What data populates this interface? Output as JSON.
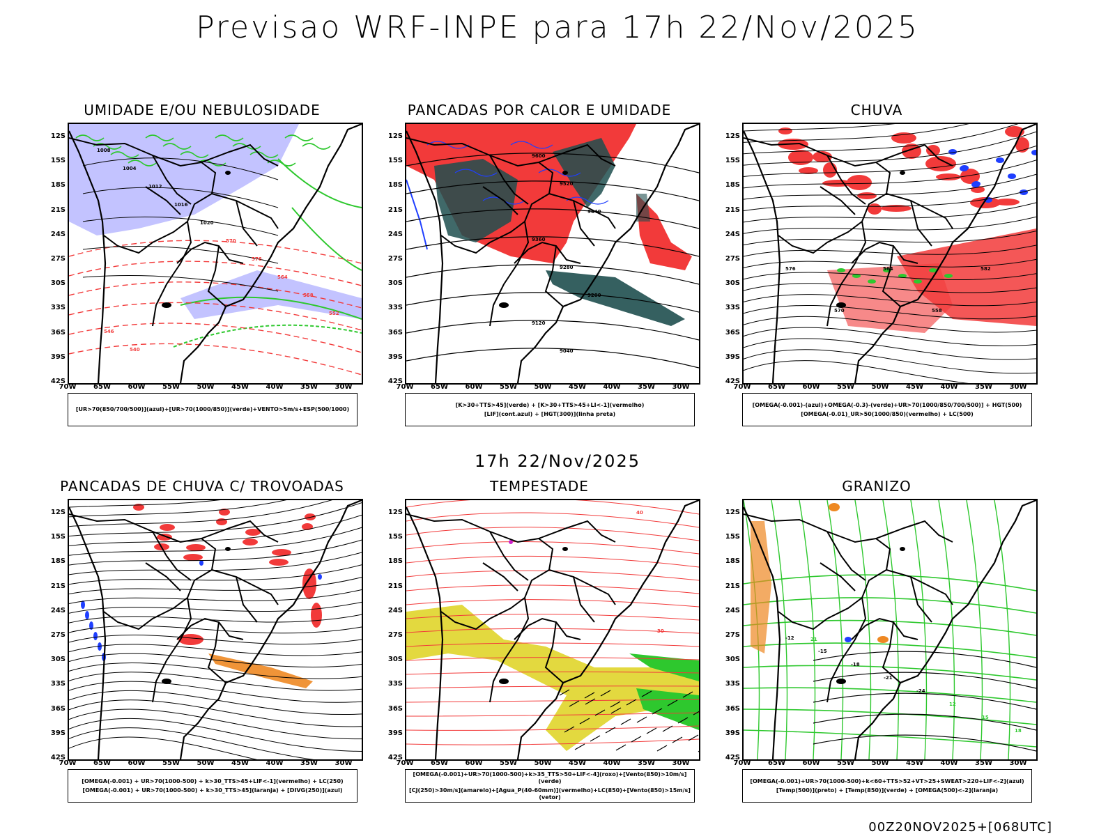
{
  "main_title": "Previsao WRF-INPE  para 17h 22/Nov/2025",
  "mid_time": "17h 22/Nov/2025",
  "footer_stamp": "00Z20NOV2025+[068UTC]",
  "lat_ticks": [
    "12S",
    "15S",
    "18S",
    "21S",
    "24S",
    "27S",
    "30S",
    "33S",
    "36S",
    "39S",
    "42S"
  ],
  "lon_ticks": [
    "70W",
    "65W",
    "60W",
    "55W",
    "50W",
    "45W",
    "40W",
    "35W",
    "30W"
  ],
  "colors": {
    "blue": "#1f3fff",
    "lavender": "#b8b8ff",
    "green": "#2ec82e",
    "red": "#f23a3a",
    "dark_teal": "#1f4f4f",
    "orange": "#ee8822",
    "yellow": "#e0d52a",
    "magenta": "#cc22cc",
    "black": "#000000"
  },
  "panels": [
    {
      "title": "UMIDADE E/OU NEBULOSIDADE",
      "legend": [
        "[UR>70(850/700/500)](azul)+[UR>70(1000/850)](verde)+VENTO>5m/s+ESP(500/1000)"
      ],
      "contour_labels": [
        "1008",
        "1004",
        "1012",
        "1016",
        "1020",
        "570",
        "576",
        "564",
        "558",
        "552",
        "546",
        "540"
      ]
    },
    {
      "title": "PANCADAS POR CALOR E UMIDADE",
      "legend": [
        "[K>30+TTS>45](verde) + [K>30+TTS>45+LI<-1](vermelho)",
        "[LIF](cont.azul) + [HGT(300)](linha preta)"
      ],
      "contour_labels": [
        "9600",
        "9520",
        "9440",
        "9360",
        "9280",
        "9200",
        "9120",
        "9040"
      ]
    },
    {
      "title": "CHUVA",
      "legend": [
        "[OMEGA(-0.001)-(azul)+OMEGA(-0.3)-(verde)+UR>70(1000/850/700/500)] + HGT(500)",
        "[OMEGA(-0.01)_UR>50(1000/850)(vermelho) + LC(500)"
      ],
      "contour_labels": [
        "576",
        "570",
        "564",
        "558",
        "582"
      ]
    },
    {
      "title": "PANCADAS DE CHUVA C/ TROVOADAS",
      "legend": [
        "[OMEGA(-0.001) + UR>70(1000-500) + k>30_TTS>45+LIF<-1](vermelho) + LC(250)",
        "[OMEGA(-0.001) + UR>70(1000-500) + k>30_TTS>45](laranja) + [DIVG(250)](azul)"
      ],
      "contour_labels": []
    },
    {
      "title": "TEMPESTADE",
      "legend": [
        "[OMEGA(-0.001)+UR>70(1000-500)+k>35_TTS>50+LIF<-4](roxo)+[Vento(850)>10m/s](verde)",
        "[CJ(250)>30m/s](amarelo)+[Agua_P(40-60mm)](vermelho)+LC(850)+[Vento(850)>15m/s](vetor)"
      ],
      "contour_labels": [
        "40",
        "30"
      ]
    },
    {
      "title": "GRANIZO",
      "legend": [
        "[OMEGA(-0.001)+UR>70(1000-500)+k<60+TTS>52+VT>25+SWEAT>220+LIF<-2](azul)",
        "[Temp(500)](preto) + [Temp(850)](verde) + [OMEGA(500)<-2](laranja)"
      ],
      "contour_labels": [
        "-12",
        "-15",
        "-18",
        "-21",
        "-24",
        "12",
        "15",
        "18",
        "21"
      ]
    }
  ]
}
